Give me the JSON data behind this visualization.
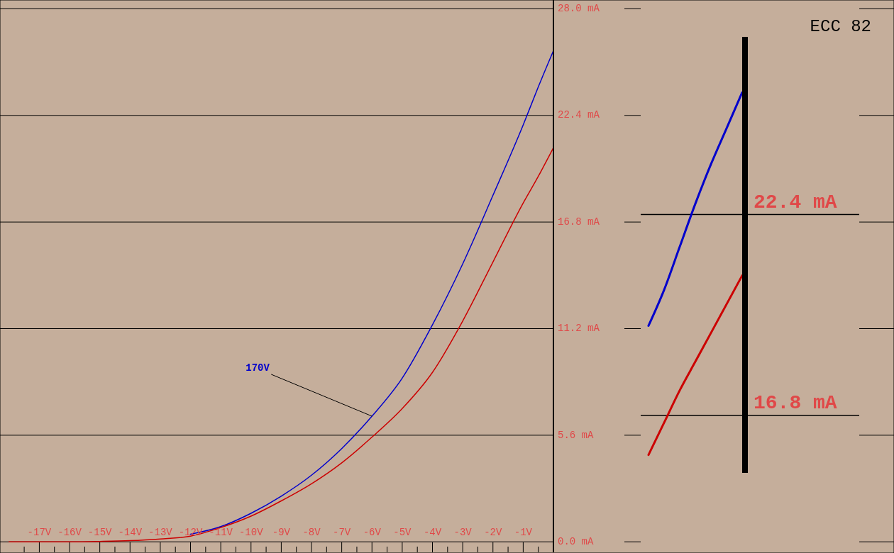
{
  "chart_data": [
    {
      "type": "line",
      "xlim": [
        -18.3,
        0
      ],
      "ylim": [
        -0.55,
        28.5
      ],
      "grid": "y",
      "xticks": [
        {
          "value": -17,
          "label": "-17V"
        },
        {
          "value": -16,
          "label": "-16V"
        },
        {
          "value": -15,
          "label": "-15V"
        },
        {
          "value": -14,
          "label": "-14V"
        },
        {
          "value": -13,
          "label": "-13V"
        },
        {
          "value": -12,
          "label": "-12V"
        },
        {
          "value": -11,
          "label": "-11V"
        },
        {
          "value": -10,
          "label": "-10V"
        },
        {
          "value": -9,
          "label": "-9V"
        },
        {
          "value": -8,
          "label": "-8V"
        },
        {
          "value": -7,
          "label": "-7V"
        },
        {
          "value": -6,
          "label": "-6V"
        },
        {
          "value": -5,
          "label": "-5V"
        },
        {
          "value": -4,
          "label": "-4V"
        },
        {
          "value": -3,
          "label": "-3V"
        },
        {
          "value": -2,
          "label": "-2V"
        },
        {
          "value": -1,
          "label": "-1V"
        },
        {
          "value": -17.5,
          "label": null
        },
        {
          "value": -16.5,
          "label": null
        },
        {
          "value": -15.5,
          "label": null
        },
        {
          "value": -14.5,
          "label": null
        },
        {
          "value": -13.5,
          "label": null
        },
        {
          "value": -12.5,
          "label": null
        },
        {
          "value": -11.5,
          "label": null
        },
        {
          "value": -10.5,
          "label": null
        },
        {
          "value": -9.5,
          "label": null
        },
        {
          "value": -8.5,
          "label": null
        },
        {
          "value": -7.5,
          "label": null
        },
        {
          "value": -6.5,
          "label": null
        },
        {
          "value": -5.5,
          "label": null
        },
        {
          "value": -4.5,
          "label": null
        },
        {
          "value": -3.5,
          "label": null
        },
        {
          "value": -2.5,
          "label": null
        },
        {
          "value": -1.5,
          "label": null
        },
        {
          "value": -0.5,
          "label": null
        }
      ],
      "yticks": [
        {
          "value": 0,
          "label": "0.0 mA"
        },
        {
          "value": 5.6,
          "label": "5.6 mA"
        },
        {
          "value": 11.2,
          "label": "11.2 mA"
        },
        {
          "value": 16.8,
          "label": "16.8 mA"
        },
        {
          "value": 22.4,
          "label": "22.4 mA"
        },
        {
          "value": 28,
          "label": "28.0 mA"
        }
      ],
      "x": [
        -18,
        -17,
        -16,
        -15,
        -14,
        -13,
        -12,
        -11,
        -10,
        -9,
        -8,
        -7,
        -6,
        -5,
        -4,
        -3,
        -2,
        -1,
        -0.5,
        0
      ],
      "series": [
        {
          "color": "#0000cc",
          "values": [
            null,
            null,
            null,
            null,
            null,
            null,
            0.4,
            0.8,
            1.5,
            2.4,
            3.5,
            4.9,
            6.6,
            8.6,
            11.4,
            14.6,
            18.2,
            21.9,
            23.9,
            25.8
          ]
        },
        {
          "color": "#cc0000",
          "values": [
            0,
            0,
            0,
            0.02,
            0.06,
            0.15,
            0.3,
            0.75,
            1.35,
            2.15,
            3.05,
            4.15,
            5.5,
            7.0,
            8.9,
            11.6,
            14.7,
            17.8,
            19.2,
            20.7
          ]
        }
      ],
      "annotations": [
        {
          "text": "170V",
          "x": -6,
          "y": 6.6
        }
      ]
    },
    {
      "type": "line",
      "title": "ECC 82",
      "categories": [
        null,
        null,
        null,
        null,
        null,
        null,
        null,
        null,
        null,
        null,
        null,
        null,
        null,
        null
      ],
      "ylim": [
        15.2,
        27.35
      ],
      "grid": "y",
      "tick_labels": "y",
      "yticks": [
        {
          "value": 16.8,
          "label": "16.8 mA"
        },
        {
          "value": 22.4,
          "label": "22.4 mA"
        }
      ],
      "series": [
        {
          "color": "#0000cc",
          "values": [
            19.3,
            20.3,
            21.5,
            22.7,
            23.8,
            24.8,
            25.8,
            null,
            null,
            null,
            null,
            null,
            null,
            null
          ]
        },
        {
          "color": "#cc0000",
          "values": [
            15.7,
            16.6,
            17.5,
            18.3,
            19.1,
            19.9,
            20.7,
            null,
            null,
            null,
            null,
            null,
            null,
            null
          ]
        }
      ]
    }
  ]
}
